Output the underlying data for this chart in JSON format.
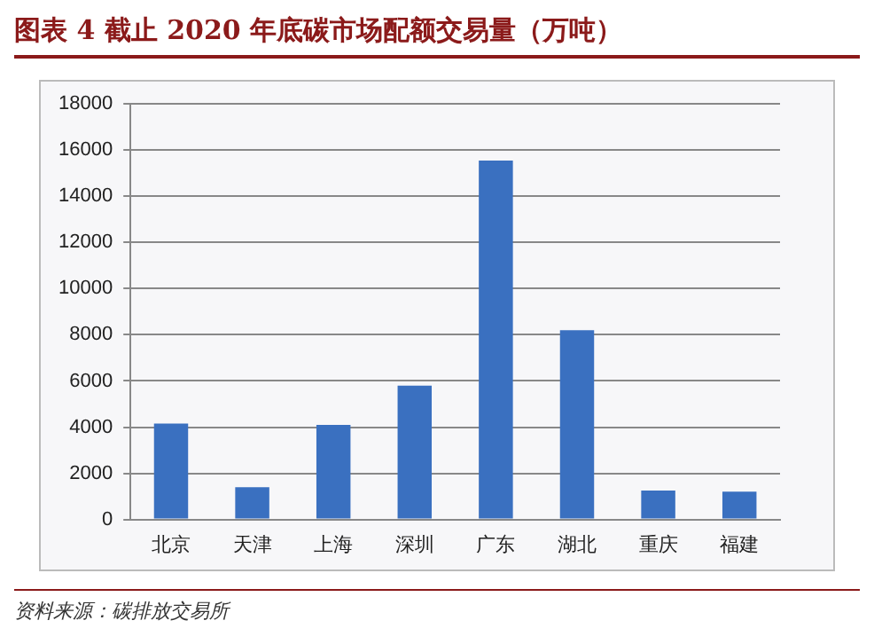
{
  "chart_data": {
    "type": "bar",
    "title": "图表 4 截止 2020 年底碳市场配额交易量（万吨）",
    "categories": [
      "北京",
      "天津",
      "上海",
      "深圳",
      "广东",
      "湖北",
      "重庆",
      "福建"
    ],
    "values": [
      4150,
      1400,
      4100,
      5800,
      15550,
      8200,
      1250,
      1200
    ],
    "color": "#3a70c0",
    "ylim": [
      0,
      18000
    ],
    "yticks": [
      0,
      2000,
      4000,
      6000,
      8000,
      10000,
      12000,
      14000,
      16000,
      18000
    ],
    "grid": "y",
    "legend": false,
    "annotations": [
      "资料来源：碳排放交易所"
    ]
  }
}
